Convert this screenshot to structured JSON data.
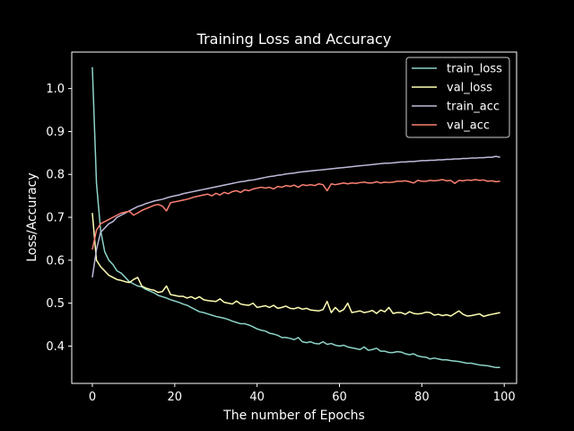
{
  "chart_data": {
    "type": "line",
    "title": "Training Loss and Accuracy",
    "xlabel": "The number of Epochs",
    "ylabel": "Loss/Accuracy",
    "xlim": [
      -5,
      103
    ],
    "ylim": [
      0.313,
      1.085
    ],
    "xticks": [
      0,
      20,
      40,
      60,
      80,
      100
    ],
    "yticks": [
      0.4,
      0.5,
      0.6,
      0.7,
      0.8,
      0.9,
      1.0
    ],
    "grid": false,
    "legend_position": "top-right",
    "background": "#000000",
    "foreground": "#ffffff",
    "x": [
      0,
      1,
      2,
      3,
      4,
      5,
      6,
      7,
      8,
      9,
      10,
      11,
      12,
      13,
      14,
      15,
      16,
      17,
      18,
      19,
      20,
      21,
      22,
      23,
      24,
      25,
      26,
      27,
      28,
      29,
      30,
      31,
      32,
      33,
      34,
      35,
      36,
      37,
      38,
      39,
      40,
      41,
      42,
      43,
      44,
      45,
      46,
      47,
      48,
      49,
      50,
      51,
      52,
      53,
      54,
      55,
      56,
      57,
      58,
      59,
      60,
      61,
      62,
      63,
      64,
      65,
      66,
      67,
      68,
      69,
      70,
      71,
      72,
      73,
      74,
      75,
      76,
      77,
      78,
      79,
      80,
      81,
      82,
      83,
      84,
      85,
      86,
      87,
      88,
      89,
      90,
      91,
      92,
      93,
      94,
      95,
      96,
      97,
      98,
      99
    ],
    "series": [
      {
        "name": "train_loss",
        "color": "#8dd3c7",
        "values": [
          1.05,
          0.78,
          0.67,
          0.62,
          0.6,
          0.59,
          0.575,
          0.57,
          0.56,
          0.55,
          0.545,
          0.54,
          0.538,
          0.532,
          0.528,
          0.524,
          0.518,
          0.515,
          0.512,
          0.508,
          0.505,
          0.502,
          0.498,
          0.495,
          0.49,
          0.485,
          0.48,
          0.478,
          0.475,
          0.472,
          0.469,
          0.467,
          0.465,
          0.462,
          0.458,
          0.455,
          0.452,
          0.452,
          0.449,
          0.445,
          0.44,
          0.437,
          0.435,
          0.43,
          0.428,
          0.425,
          0.42,
          0.42,
          0.418,
          0.415,
          0.42,
          0.41,
          0.408,
          0.41,
          0.406,
          0.405,
          0.41,
          0.404,
          0.406,
          0.402,
          0.4,
          0.402,
          0.398,
          0.396,
          0.394,
          0.392,
          0.398,
          0.39,
          0.392,
          0.395,
          0.388,
          0.388,
          0.385,
          0.385,
          0.387,
          0.386,
          0.382,
          0.38,
          0.382,
          0.377,
          0.375,
          0.374,
          0.37,
          0.372,
          0.37,
          0.368,
          0.368,
          0.366,
          0.365,
          0.364,
          0.362,
          0.36,
          0.36,
          0.358,
          0.356,
          0.355,
          0.354,
          0.352,
          0.35,
          0.35
        ]
      },
      {
        "name": "val_loss",
        "color": "#ffffb3",
        "values": [
          0.71,
          0.6,
          0.585,
          0.575,
          0.565,
          0.56,
          0.555,
          0.553,
          0.55,
          0.548,
          0.555,
          0.56,
          0.54,
          0.535,
          0.532,
          0.53,
          0.525,
          0.527,
          0.54,
          0.52,
          0.518,
          0.516,
          0.516,
          0.512,
          0.515,
          0.51,
          0.515,
          0.508,
          0.506,
          0.505,
          0.504,
          0.51,
          0.502,
          0.5,
          0.498,
          0.505,
          0.498,
          0.496,
          0.495,
          0.5,
          0.49,
          0.492,
          0.494,
          0.49,
          0.495,
          0.488,
          0.49,
          0.493,
          0.488,
          0.487,
          0.49,
          0.486,
          0.488,
          0.484,
          0.483,
          0.482,
          0.485,
          0.504,
          0.478,
          0.49,
          0.48,
          0.485,
          0.5,
          0.478,
          0.48,
          0.482,
          0.478,
          0.48,
          0.483,
          0.476,
          0.484,
          0.48,
          0.49,
          0.476,
          0.478,
          0.478,
          0.474,
          0.48,
          0.476,
          0.475,
          0.476,
          0.479,
          0.478,
          0.472,
          0.474,
          0.471,
          0.473,
          0.47,
          0.476,
          0.482,
          0.474,
          0.47,
          0.471,
          0.473,
          0.475,
          0.469,
          0.472,
          0.474,
          0.476,
          0.478
        ]
      },
      {
        "name": "train_acc",
        "color": "#bebada",
        "values": [
          0.56,
          0.625,
          0.665,
          0.675,
          0.685,
          0.69,
          0.7,
          0.705,
          0.71,
          0.715,
          0.72,
          0.725,
          0.728,
          0.732,
          0.735,
          0.738,
          0.74,
          0.742,
          0.745,
          0.748,
          0.75,
          0.752,
          0.755,
          0.757,
          0.759,
          0.761,
          0.763,
          0.765,
          0.767,
          0.769,
          0.771,
          0.773,
          0.775,
          0.777,
          0.779,
          0.781,
          0.783,
          0.784,
          0.786,
          0.787,
          0.789,
          0.791,
          0.793,
          0.795,
          0.796,
          0.798,
          0.799,
          0.801,
          0.802,
          0.803,
          0.805,
          0.806,
          0.807,
          0.808,
          0.809,
          0.81,
          0.811,
          0.812,
          0.813,
          0.814,
          0.815,
          0.816,
          0.817,
          0.818,
          0.819,
          0.82,
          0.821,
          0.822,
          0.823,
          0.824,
          0.825,
          0.826,
          0.826,
          0.827,
          0.828,
          0.829,
          0.829,
          0.83,
          0.83,
          0.831,
          0.832,
          0.832,
          0.833,
          0.833,
          0.834,
          0.834,
          0.835,
          0.835,
          0.836,
          0.836,
          0.837,
          0.837,
          0.838,
          0.838,
          0.839,
          0.839,
          0.84,
          0.84,
          0.842,
          0.84
        ]
      },
      {
        "name": "val_acc",
        "color": "#fb8072",
        "values": [
          0.625,
          0.67,
          0.685,
          0.69,
          0.695,
          0.7,
          0.705,
          0.71,
          0.712,
          0.714,
          0.705,
          0.71,
          0.716,
          0.72,
          0.724,
          0.728,
          0.73,
          0.726,
          0.715,
          0.734,
          0.736,
          0.738,
          0.74,
          0.742,
          0.745,
          0.748,
          0.75,
          0.752,
          0.754,
          0.75,
          0.756,
          0.752,
          0.758,
          0.755,
          0.76,
          0.762,
          0.758,
          0.764,
          0.762,
          0.766,
          0.768,
          0.77,
          0.768,
          0.77,
          0.766,
          0.772,
          0.77,
          0.774,
          0.772,
          0.775,
          0.77,
          0.776,
          0.774,
          0.776,
          0.774,
          0.778,
          0.776,
          0.762,
          0.778,
          0.776,
          0.778,
          0.78,
          0.778,
          0.78,
          0.779,
          0.781,
          0.782,
          0.78,
          0.78,
          0.783,
          0.78,
          0.782,
          0.781,
          0.782,
          0.784,
          0.784,
          0.785,
          0.783,
          0.78,
          0.786,
          0.784,
          0.784,
          0.786,
          0.785,
          0.786,
          0.788,
          0.785,
          0.786,
          0.779,
          0.786,
          0.785,
          0.787,
          0.786,
          0.788,
          0.786,
          0.787,
          0.784,
          0.785,
          0.783,
          0.784
        ]
      }
    ]
  }
}
